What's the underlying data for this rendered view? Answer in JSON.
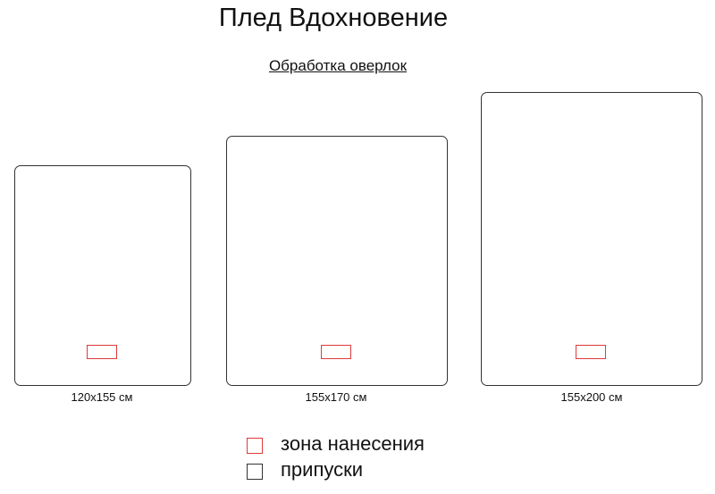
{
  "title": "Плед Вдохновение",
  "subtitle": "Обработка оверлок",
  "blankets": [
    {
      "size_label": "120x155 см"
    },
    {
      "size_label": "155x170 см"
    },
    {
      "size_label": "155x200 см"
    }
  ],
  "legend": [
    {
      "label": "зона нанесения",
      "color": "#e03a3a"
    },
    {
      "label": "припуски",
      "color": "#333333"
    }
  ]
}
